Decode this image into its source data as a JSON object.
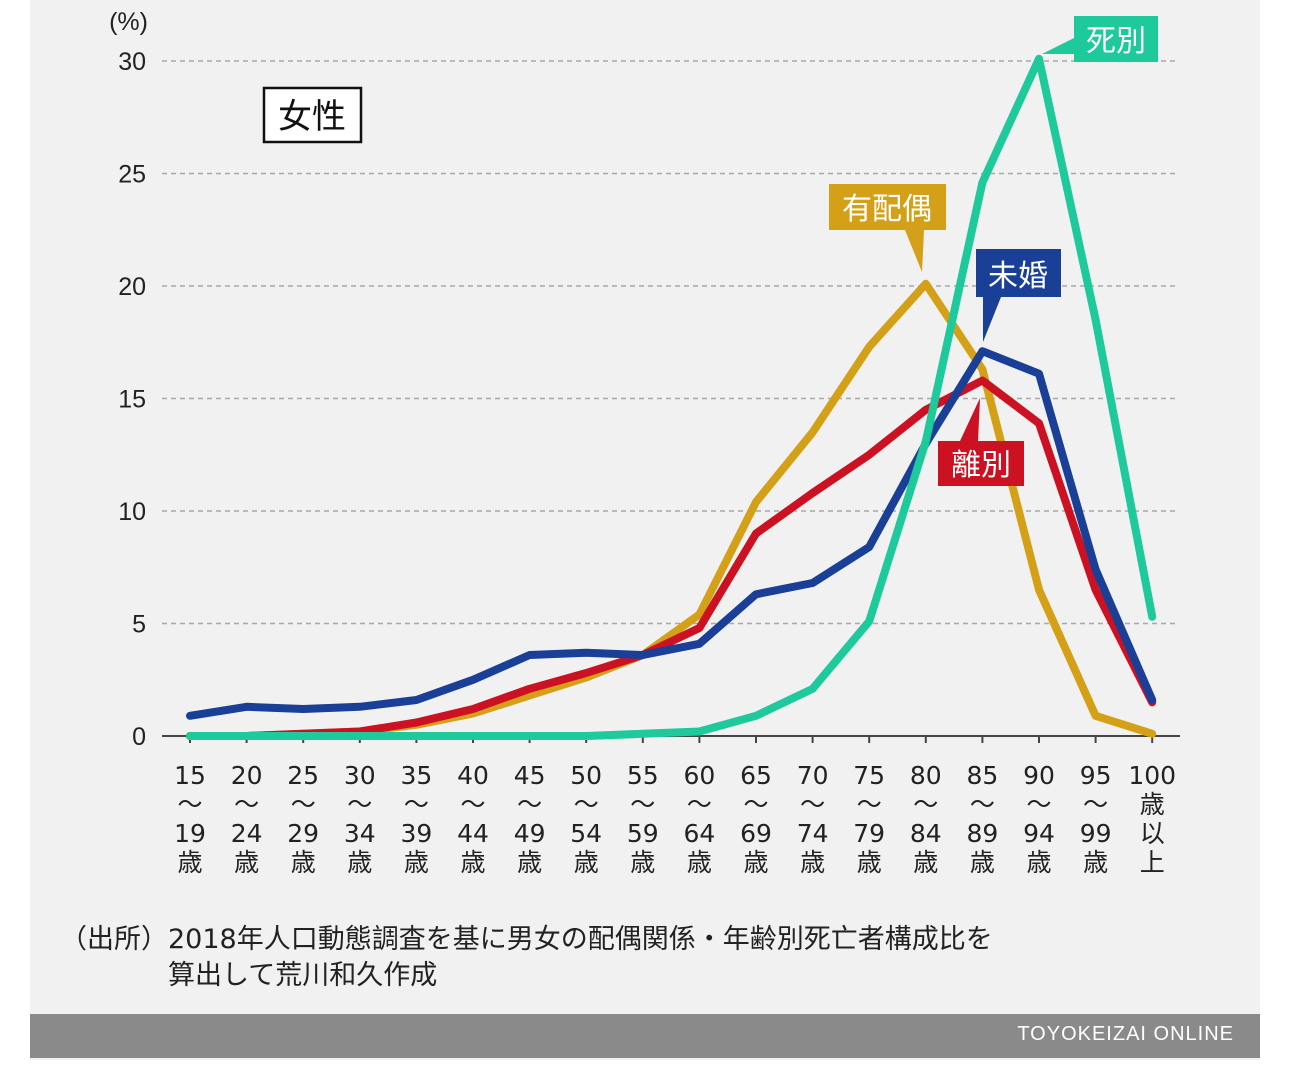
{
  "chart_data": {
    "type": "line",
    "y_unit": "(%)",
    "ylim": [
      0,
      30
    ],
    "yticks": [
      0,
      5,
      10,
      15,
      20,
      25,
      30
    ],
    "grid": true,
    "panel_label": "女性",
    "categories": [
      [
        "15",
        "〜",
        "19",
        "歳"
      ],
      [
        "20",
        "〜",
        "24",
        "歳"
      ],
      [
        "25",
        "〜",
        "29",
        "歳"
      ],
      [
        "30",
        "〜",
        "34",
        "歳"
      ],
      [
        "35",
        "〜",
        "39",
        "歳"
      ],
      [
        "40",
        "〜",
        "44",
        "歳"
      ],
      [
        "45",
        "〜",
        "49",
        "歳"
      ],
      [
        "50",
        "〜",
        "54",
        "歳"
      ],
      [
        "55",
        "〜",
        "59",
        "歳"
      ],
      [
        "60",
        "〜",
        "64",
        "歳"
      ],
      [
        "65",
        "〜",
        "69",
        "歳"
      ],
      [
        "70",
        "〜",
        "74",
        "歳"
      ],
      [
        "75",
        "〜",
        "79",
        "歳"
      ],
      [
        "80",
        "〜",
        "84",
        "歳"
      ],
      [
        "85",
        "〜",
        "89",
        "歳"
      ],
      [
        "90",
        "〜",
        "94",
        "歳"
      ],
      [
        "95",
        "〜",
        "99",
        "歳"
      ],
      [
        "100",
        "歳",
        "以",
        "上"
      ]
    ],
    "series": [
      {
        "name": "有配偶",
        "color": "#d4a017",
        "values": [
          0.0,
          0.0,
          0.1,
          0.2,
          0.5,
          1.0,
          1.8,
          2.6,
          3.6,
          5.4,
          10.4,
          13.5,
          17.3,
          20.1,
          16.3,
          6.5,
          0.9,
          0.1
        ]
      },
      {
        "name": "離別",
        "color": "#cc1122",
        "values": [
          0.0,
          0.0,
          0.1,
          0.2,
          0.6,
          1.2,
          2.1,
          2.8,
          3.6,
          4.8,
          9.0,
          10.8,
          12.5,
          14.5,
          15.8,
          13.9,
          6.5,
          1.5
        ]
      },
      {
        "name": "未婚",
        "color": "#1a3f96",
        "values": [
          0.9,
          1.3,
          1.2,
          1.3,
          1.6,
          2.5,
          3.6,
          3.7,
          3.6,
          4.1,
          6.3,
          6.8,
          8.4,
          13.0,
          17.1,
          16.1,
          7.4,
          1.6
        ]
      },
      {
        "name": "死別",
        "color": "#1ec99b",
        "values": [
          0.0,
          0.0,
          0.0,
          0.0,
          0.0,
          0.0,
          0.0,
          0.0,
          0.1,
          0.2,
          0.9,
          2.1,
          5.1,
          13.1,
          24.6,
          30.1,
          18.5,
          5.3
        ]
      }
    ]
  },
  "source_note": {
    "prefix": "（出所）",
    "line1": "2018年人口動態調査を基に男女の配偶関係・年齢別死亡者構成比を",
    "line2": "算出して荒川和久作成"
  },
  "footer": {
    "brand": "TOYOKEIZAI ONLINE"
  }
}
